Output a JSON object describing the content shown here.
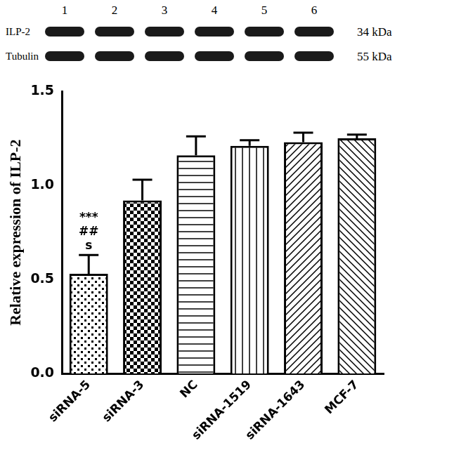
{
  "chart_data": {
    "type": "bar",
    "y_label": "Relative expression of ILP-2",
    "categories": [
      "siRNA-5",
      "siRNA-3",
      "NC",
      "siRNA-1519",
      "siRNA-1643",
      "MCF-7"
    ],
    "values": [
      0.53,
      0.92,
      1.16,
      1.21,
      1.23,
      1.25
    ],
    "errors": [
      0.1,
      0.11,
      0.1,
      0.03,
      0.05,
      0.02
    ],
    "color": "#000000",
    "ylim": [
      0,
      1.5
    ],
    "yticks": [
      {
        "value": 0,
        "label": "0.0"
      },
      0.5,
      {
        "value": 1,
        "label": "1.0"
      },
      1.5
    ],
    "grid": false,
    "annotations": [
      {
        "category": "siRNA-5",
        "text": [
          "***",
          "##",
          "s"
        ]
      }
    ]
  },
  "blot": {
    "lanes": [
      "1",
      "2",
      "3",
      "4",
      "5",
      "6"
    ],
    "rows": [
      {
        "label": "ILP-2",
        "size": "34 kDa"
      },
      {
        "label": "Tubulin",
        "size": "55 kDa"
      }
    ]
  }
}
